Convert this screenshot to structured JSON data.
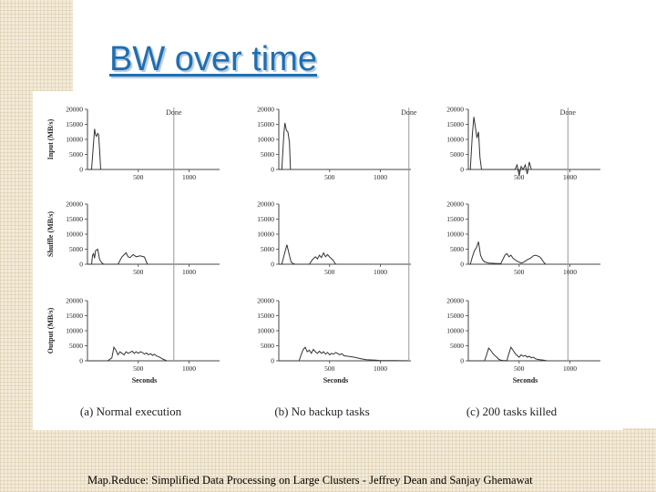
{
  "slide": {
    "title": "BW over time",
    "citation": "Map.Reduce: Simplified Data Processing on Large Clusters - Jeffrey Dean and Sanjay Ghemawat"
  },
  "colors": {
    "title": "#1f6fb2",
    "line": "#333333",
    "axis": "#444444",
    "done_line": "#999999"
  },
  "chart_data": {
    "type": "line",
    "row_labels": [
      "Input (MB/s)",
      "Shuffle (MB/s)",
      "Output (MB/s)"
    ],
    "xlabel": "Seconds",
    "x_ticks": [
      "500",
      "1000"
    ],
    "y_ticks": [
      "20000",
      "15000",
      "10000",
      "5000",
      "0"
    ],
    "done_label": "Done",
    "ylim": [
      0,
      20000
    ],
    "xlim": [
      0,
      1300
    ],
    "columns": [
      {
        "caption": "(a) Normal execution",
        "done_x": 850,
        "series": {
          "input": [
            [
              0,
              0
            ],
            [
              40,
              0
            ],
            [
              60,
              9000
            ],
            [
              70,
              13500
            ],
            [
              80,
              11500
            ],
            [
              90,
              11000
            ],
            [
              100,
              12000
            ],
            [
              110,
              11500
            ],
            [
              120,
              6000
            ],
            [
              130,
              0
            ]
          ],
          "shuffle": [
            [
              0,
              0
            ],
            [
              40,
              0
            ],
            [
              50,
              3000
            ],
            [
              60,
              3500
            ],
            [
              70,
              2000
            ],
            [
              80,
              4500
            ],
            [
              100,
              5000
            ],
            [
              120,
              1500
            ],
            [
              140,
              500
            ],
            [
              160,
              0
            ],
            [
              300,
              0
            ],
            [
              340,
              2500
            ],
            [
              380,
              3800
            ],
            [
              400,
              2500
            ],
            [
              420,
              2200
            ],
            [
              450,
              3200
            ],
            [
              480,
              2500
            ],
            [
              520,
              2800
            ],
            [
              560,
              2400
            ],
            [
              590,
              0
            ]
          ],
          "output": [
            [
              0,
              0
            ],
            [
              200,
              0
            ],
            [
              240,
              1000
            ],
            [
              260,
              4500
            ],
            [
              280,
              3500
            ],
            [
              300,
              2000
            ],
            [
              320,
              3000
            ],
            [
              340,
              2500
            ],
            [
              360,
              2000
            ],
            [
              380,
              3000
            ],
            [
              400,
              2500
            ],
            [
              420,
              2800
            ],
            [
              440,
              3200
            ],
            [
              460,
              2500
            ],
            [
              480,
              3000
            ],
            [
              500,
              2500
            ],
            [
              520,
              3000
            ],
            [
              540,
              2800
            ],
            [
              560,
              2200
            ],
            [
              580,
              2600
            ],
            [
              600,
              2000
            ],
            [
              620,
              2400
            ],
            [
              640,
              1800
            ],
            [
              660,
              2200
            ],
            [
              680,
              1600
            ],
            [
              700,
              1400
            ],
            [
              720,
              1000
            ],
            [
              740,
              600
            ],
            [
              760,
              300
            ],
            [
              780,
              0
            ]
          ]
        }
      },
      {
        "caption": "(b) No backup tasks",
        "done_x": 1280,
        "series": {
          "input": [
            [
              0,
              0
            ],
            [
              30,
              0
            ],
            [
              50,
              12000
            ],
            [
              60,
              15500
            ],
            [
              75,
              13000
            ],
            [
              90,
              12500
            ],
            [
              105,
              9000
            ],
            [
              115,
              0
            ]
          ],
          "shuffle": [
            [
              0,
              0
            ],
            [
              30,
              0
            ],
            [
              45,
              2000
            ],
            [
              60,
              4000
            ],
            [
              80,
              6500
            ],
            [
              100,
              3500
            ],
            [
              120,
              800
            ],
            [
              140,
              200
            ],
            [
              160,
              0
            ],
            [
              300,
              0
            ],
            [
              330,
              1500
            ],
            [
              360,
              2500
            ],
            [
              380,
              1800
            ],
            [
              400,
              3000
            ],
            [
              420,
              2200
            ],
            [
              440,
              3800
            ],
            [
              460,
              2500
            ],
            [
              480,
              3200
            ],
            [
              500,
              2400
            ],
            [
              530,
              1500
            ],
            [
              560,
              0
            ]
          ],
          "output": [
            [
              0,
              0
            ],
            [
              200,
              0
            ],
            [
              220,
              2000
            ],
            [
              240,
              3800
            ],
            [
              260,
              4500
            ],
            [
              280,
              3000
            ],
            [
              300,
              3500
            ],
            [
              320,
              2500
            ],
            [
              340,
              3800
            ],
            [
              360,
              3000
            ],
            [
              380,
              2500
            ],
            [
              400,
              3200
            ],
            [
              420,
              2500
            ],
            [
              440,
              3000
            ],
            [
              460,
              2200
            ],
            [
              480,
              2800
            ],
            [
              500,
              2000
            ],
            [
              520,
              2500
            ],
            [
              540,
              2200
            ],
            [
              560,
              2800
            ],
            [
              580,
              2400
            ],
            [
              600,
              2000
            ],
            [
              620,
              2400
            ],
            [
              640,
              1700
            ],
            [
              660,
              1600
            ],
            [
              700,
              1400
            ],
            [
              740,
              1200
            ],
            [
              780,
              900
            ],
            [
              820,
              600
            ],
            [
              860,
              400
            ],
            [
              900,
              300
            ],
            [
              950,
              200
            ],
            [
              1000,
              100
            ],
            [
              1050,
              100
            ],
            [
              1100,
              50
            ],
            [
              1150,
              50
            ],
            [
              1200,
              40
            ],
            [
              1250,
              30
            ],
            [
              1280,
              0
            ]
          ]
        }
      },
      {
        "caption": "(c) 200 tasks killed",
        "done_x": 980,
        "series": {
          "input": [
            [
              0,
              0
            ],
            [
              20,
              0
            ],
            [
              40,
              12000
            ],
            [
              55,
              17500
            ],
            [
              70,
              14000
            ],
            [
              85,
              10500
            ],
            [
              100,
              12500
            ],
            [
              115,
              4000
            ],
            [
              130,
              0
            ],
            [
              460,
              0
            ],
            [
              480,
              1500
            ],
            [
              500,
              -2000
            ],
            [
              520,
              1000
            ],
            [
              540,
              0
            ],
            [
              560,
              1500
            ],
            [
              580,
              -1500
            ],
            [
              600,
              2500
            ],
            [
              620,
              0
            ]
          ],
          "shuffle": [
            [
              0,
              0
            ],
            [
              20,
              0
            ],
            [
              40,
              2500
            ],
            [
              60,
              4500
            ],
            [
              80,
              5500
            ],
            [
              100,
              7500
            ],
            [
              120,
              3000
            ],
            [
              140,
              1500
            ],
            [
              160,
              800
            ],
            [
              200,
              400
            ],
            [
              240,
              300
            ],
            [
              280,
              200
            ],
            [
              320,
              200
            ],
            [
              360,
              3000
            ],
            [
              380,
              3500
            ],
            [
              400,
              2500
            ],
            [
              420,
              3000
            ],
            [
              440,
              2000
            ],
            [
              460,
              1500
            ],
            [
              480,
              1000
            ],
            [
              500,
              700
            ],
            [
              520,
              400
            ],
            [
              540,
              600
            ],
            [
              560,
              1000
            ],
            [
              580,
              1500
            ],
            [
              600,
              1800
            ],
            [
              620,
              2200
            ],
            [
              640,
              2800
            ],
            [
              660,
              3000
            ],
            [
              680,
              2800
            ],
            [
              700,
              2500
            ],
            [
              720,
              1800
            ],
            [
              740,
              800
            ],
            [
              760,
              0
            ]
          ],
          "output": [
            [
              0,
              0
            ],
            [
              160,
              0
            ],
            [
              180,
              2000
            ],
            [
              200,
              4200
            ],
            [
              220,
              3500
            ],
            [
              240,
              2500
            ],
            [
              260,
              1800
            ],
            [
              280,
              1200
            ],
            [
              300,
              500
            ],
            [
              320,
              200
            ],
            [
              340,
              100
            ],
            [
              360,
              50
            ],
            [
              380,
              100
            ],
            [
              400,
              2500
            ],
            [
              420,
              4500
            ],
            [
              440,
              3500
            ],
            [
              460,
              2500
            ],
            [
              480,
              1800
            ],
            [
              500,
              1200
            ],
            [
              520,
              2000
            ],
            [
              540,
              1500
            ],
            [
              560,
              1800
            ],
            [
              580,
              1200
            ],
            [
              600,
              1500
            ],
            [
              620,
              1000
            ],
            [
              640,
              1200
            ],
            [
              660,
              700
            ],
            [
              680,
              500
            ],
            [
              700,
              400
            ],
            [
              720,
              300
            ],
            [
              740,
              200
            ],
            [
              760,
              100
            ],
            [
              780,
              0
            ]
          ]
        }
      }
    ]
  }
}
